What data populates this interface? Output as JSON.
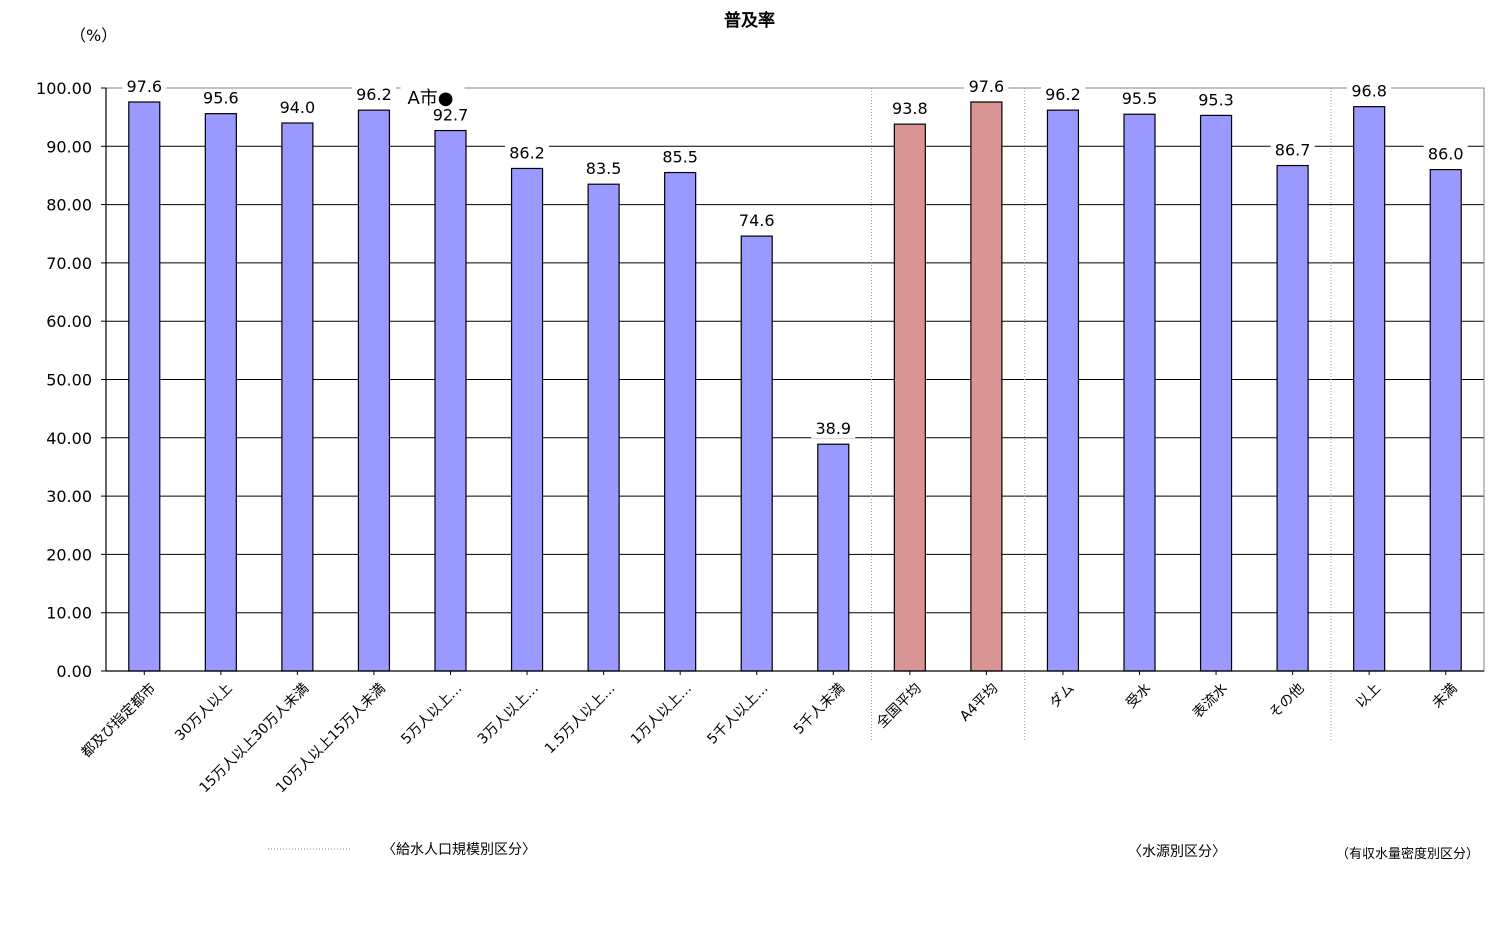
{
  "page": {
    "title": "普及率",
    "unit_label": "（%）",
    "marker_label": "A市●"
  },
  "colors": {
    "default_bar": "#9999ff",
    "highlight_bar": "#d99594",
    "grid": "#000000",
    "axis": "#000000"
  },
  "group_labels": [
    "〈給水人口規模別区分〉",
    "〈水源別区分〉",
    "（有収水量密度別区分）"
  ],
  "chart_data": {
    "type": "bar",
    "title": "普及率",
    "ylabel": "（%）",
    "xlabel": "",
    "ylim": [
      0,
      100
    ],
    "yticks": [
      0,
      10,
      20,
      30,
      40,
      50,
      60,
      70,
      80,
      90,
      100
    ],
    "ytick_labels": [
      "0.00",
      "10.00",
      "20.00",
      "30.00",
      "40.00",
      "50.00",
      "60.00",
      "70.00",
      "80.00",
      "90.00",
      "100.00"
    ],
    "grid": true,
    "categories": [
      "都及び指定都市",
      "30万人以上",
      "15万人以上30万人未満",
      "10万人以上15万人未満",
      "5万人以上…",
      "3万人以上…",
      "1.5万人以上…",
      "1万人以上…",
      "5千人以上…",
      "5千人未満",
      "全国平均",
      "A4平均",
      "ダム",
      "受水",
      "表流水",
      "その他",
      "以上",
      "未満"
    ],
    "values": [
      97.6,
      95.6,
      94.0,
      96.2,
      92.7,
      86.2,
      83.5,
      85.5,
      74.6,
      38.9,
      93.8,
      97.6,
      96.2,
      95.5,
      95.3,
      86.7,
      96.8,
      86.0
    ],
    "data_labels": [
      "97.6",
      "95.6",
      "94.0",
      "96.2",
      "92.7",
      "86.2",
      "83.5",
      "85.5",
      "74.6",
      "38.9",
      "93.8",
      "97.6",
      "96.2",
      "95.5",
      "95.3",
      "86.7",
      "96.8",
      "86.0"
    ],
    "highlighted": [
      "全国平均",
      "A4平均"
    ]
  }
}
